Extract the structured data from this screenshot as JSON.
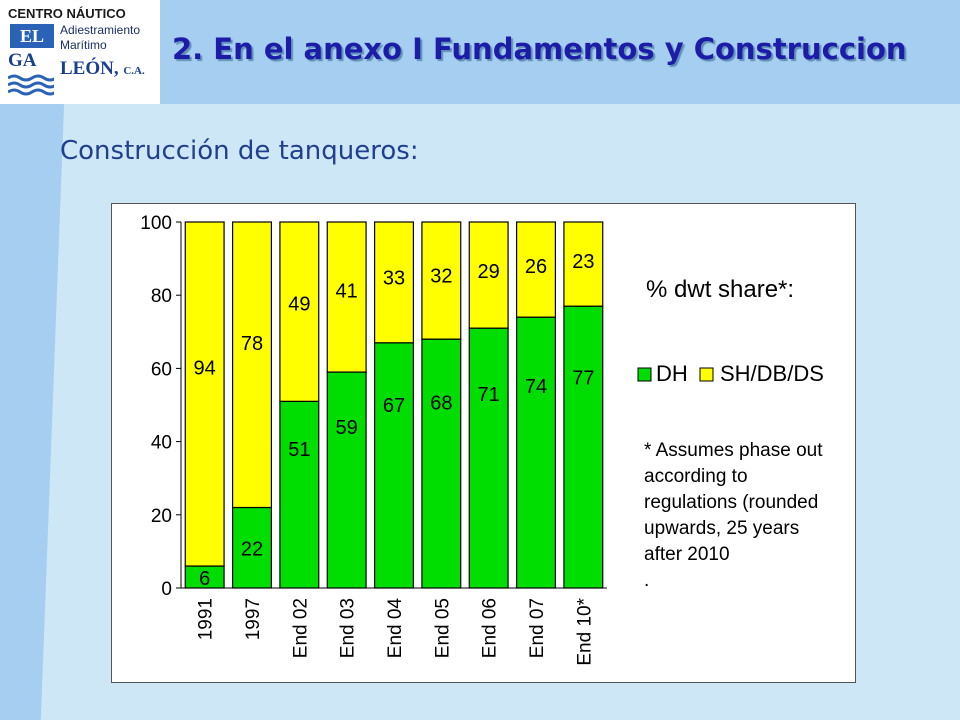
{
  "header": {
    "logo_line1": "CENTRO NÁUTICO",
    "logo_line2": "Adiestramiento",
    "logo_line3": "Marítimo",
    "logo_el": "EL",
    "logo_ga": "GA",
    "logo_leon": "LEÓN,",
    "logo_ca": "C.A.",
    "title": "2. En el anexo I Fundamentos y Construccion"
  },
  "subtitle": "Construcción de tanqueros:",
  "colors": {
    "dh": "#00dd00",
    "sh": "#ffff00",
    "title": "#1c1ca8",
    "background": "#cde7f7",
    "band": "#a6cef1"
  },
  "chart_data": {
    "type": "bar",
    "stacked": true,
    "categories": [
      "1991",
      "1997",
      "End 02",
      "End 03",
      "End 04",
      "End 05",
      "End 06",
      "End 07",
      "End 10*"
    ],
    "series": [
      {
        "name": "DH",
        "values": [
          6,
          22,
          51,
          59,
          67,
          68,
          71,
          74,
          77
        ]
      },
      {
        "name": "SH/DB/DS",
        "values": [
          94,
          78,
          49,
          41,
          33,
          32,
          29,
          26,
          23
        ]
      }
    ],
    "data_labels": {
      "DH": [
        "6",
        "22",
        "51",
        "59",
        "67",
        "68",
        "71",
        "74",
        "77"
      ],
      "SH/DB/DS": [
        "94",
        "78",
        "49",
        "41",
        "33",
        "32",
        "29",
        "26",
        "23"
      ]
    },
    "ylim": [
      0,
      100
    ],
    "yticks": [
      "0",
      "20",
      "40",
      "60",
      "80",
      "100"
    ],
    "legend_title": "% dwt share*:",
    "legend_position": "right",
    "note_lines": [
      "* Assumes phase out",
      "according to",
      "regulations (rounded",
      "upwards, 25 years",
      "after 2010",
      "."
    ],
    "grid": false
  }
}
